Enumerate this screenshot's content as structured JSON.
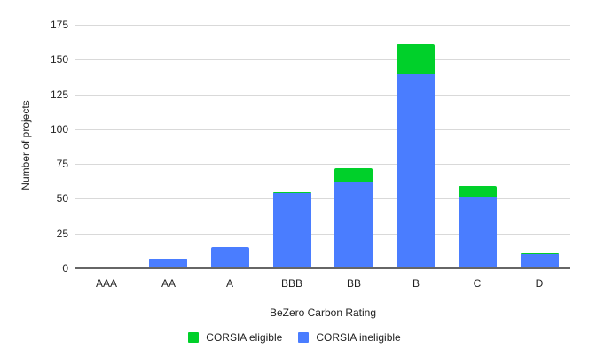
{
  "chart_data": {
    "type": "bar",
    "stacked": true,
    "title": "",
    "xlabel": "BeZero Carbon Rating",
    "ylabel": "Number of projects",
    "ylim": [
      0,
      175
    ],
    "yticks": [
      0,
      25,
      50,
      75,
      100,
      125,
      150,
      175
    ],
    "grid": true,
    "legend_position": "bottom",
    "categories": [
      "AAA",
      "AA",
      "A",
      "BBB",
      "BB",
      "B",
      "C",
      "D"
    ],
    "series": [
      {
        "name": "CORSIA ineligible",
        "color": "#4a7dff",
        "values": [
          0,
          7,
          15,
          54,
          62,
          140,
          51,
          10
        ]
      },
      {
        "name": "CORSIA eligible",
        "color": "#00d02a",
        "values": [
          0,
          0,
          0,
          1,
          10,
          21,
          8,
          1
        ]
      }
    ]
  },
  "axis": {
    "yticks": [
      "175",
      "150",
      "125",
      "100",
      "75",
      "50",
      "25",
      "0"
    ],
    "xticks": [
      "AAA",
      "AA",
      "A",
      "BBB",
      "BB",
      "B",
      "C",
      "D"
    ],
    "xlabel": "BeZero Carbon Rating",
    "ylabel": "Number of projects"
  },
  "legend": {
    "items": [
      {
        "label": "CORSIA eligible",
        "color": "#00d02a"
      },
      {
        "label": "CORSIA ineligible",
        "color": "#4a7dff"
      }
    ]
  }
}
